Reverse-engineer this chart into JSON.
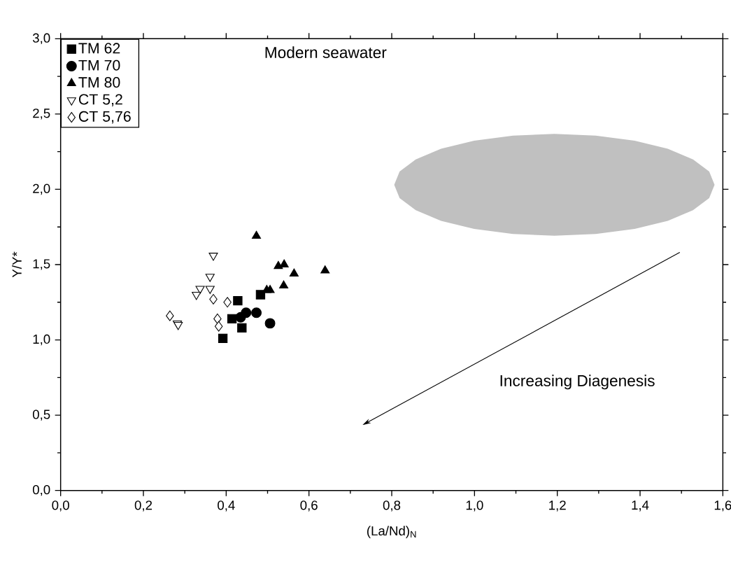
{
  "chart_data": {
    "type": "scatter",
    "xlabel": "(La/Nd)$_{N}$",
    "ylabel": "Y/Y*",
    "xlim": [
      0,
      1.6
    ],
    "ylim": [
      0,
      3.0
    ],
    "xticks": [
      {
        "value": 0,
        "label": "0,0"
      },
      {
        "value": 0.2,
        "label": "0,2"
      },
      {
        "value": 0.4,
        "label": "0,4"
      },
      {
        "value": 0.6,
        "label": "0,6"
      },
      {
        "value": 0.8,
        "label": "0,8"
      },
      {
        "value": 1.0,
        "label": "1,0"
      },
      {
        "value": 1.2,
        "label": "1,2"
      },
      {
        "value": 1.4,
        "label": "1,4"
      },
      {
        "value": 1.6,
        "label": "1,6"
      }
    ],
    "yticks": [
      {
        "value": 0,
        "label": "0,0"
      },
      {
        "value": 0.5,
        "label": "0,5"
      },
      {
        "value": 1.0,
        "label": "1,0"
      },
      {
        "value": 1.5,
        "label": "1,5"
      },
      {
        "value": 2.0,
        "label": "2,0"
      },
      {
        "value": 2.5,
        "label": "2,5"
      },
      {
        "value": 3.0,
        "label": "3,0"
      }
    ],
    "legend": "top left",
    "grid": false,
    "series": [
      {
        "type": "area",
        "color": "#c0c0c0",
        "x": [
          1.58,
          1.567,
          1.528,
          1.467,
          1.387,
          1.293,
          1.193,
          1.093,
          0.999,
          0.919,
          0.858,
          0.819,
          0.806,
          0.819,
          0.858,
          0.919,
          0.999,
          1.093,
          1.193,
          1.293,
          1.387,
          1.467,
          1.528,
          1.567
        ],
        "values": [
          2.03,
          2.118,
          2.199,
          2.269,
          2.323,
          2.357,
          2.368,
          2.357,
          2.323,
          2.269,
          2.199,
          2.118,
          2.03,
          1.942,
          1.861,
          1.791,
          1.737,
          1.703,
          1.692,
          1.703,
          1.737,
          1.791,
          1.861,
          1.942
        ]
      },
      {
        "name": "TM 62",
        "marker": "square",
        "color": "#000000",
        "x": [
          0.428,
          0.483,
          0.414,
          0.438,
          0.392
        ],
        "values": [
          1.26,
          1.3,
          1.14,
          1.08,
          1.01
        ]
      },
      {
        "name": "TM 70",
        "marker": "circle",
        "color": "#000000",
        "x": [
          0.448,
          0.473,
          0.435,
          0.506
        ],
        "values": [
          1.18,
          1.18,
          1.15,
          1.11
        ]
      },
      {
        "name": "TM 80",
        "marker": "triangle",
        "color": "#000000",
        "x": [
          0.473,
          0.526,
          0.54,
          0.564,
          0.639,
          0.506,
          0.498,
          0.539
        ],
        "values": [
          1.69,
          1.49,
          1.5,
          1.44,
          1.46,
          1.33,
          1.33,
          1.36
        ]
      },
      {
        "name": "CT 5,2",
        "marker": "triangle-down",
        "color": "#ffffff",
        "x": [
          0.369,
          0.361,
          0.337,
          0.361,
          0.328,
          0.282,
          0.284
        ],
        "values": [
          1.56,
          1.42,
          1.34,
          1.34,
          1.3,
          1.11,
          1.1
        ]
      },
      {
        "name": "CT 5,76",
        "marker": "diamond",
        "color": "#ffffff",
        "x": [
          0.264,
          0.369,
          0.403,
          0.379,
          0.382
        ],
        "values": [
          1.16,
          1.27,
          1.25,
          1.14,
          1.09
        ]
      }
    ],
    "annotations": [
      "Modern seawater",
      "Increasing Diagenesis"
    ]
  }
}
